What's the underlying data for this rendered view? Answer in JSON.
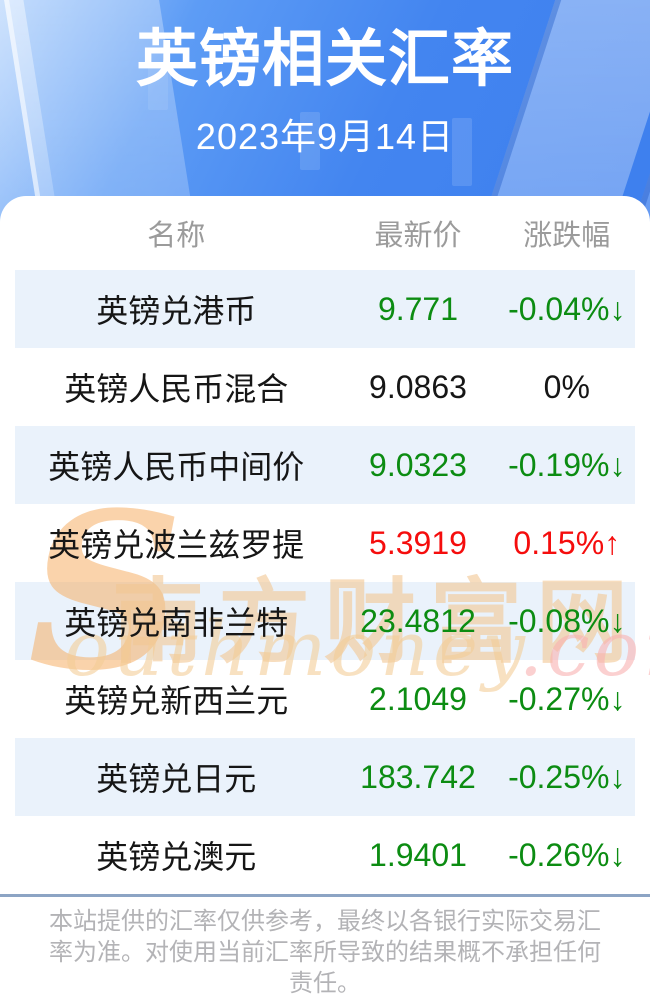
{
  "header": {
    "title": "英镑相关汇率",
    "date": "2023年9月14日"
  },
  "table": {
    "columns": [
      "名称",
      "最新价",
      "涨跌幅"
    ],
    "rows": [
      {
        "name": "英镑兑港币",
        "price": "9.771",
        "change": "-0.04%↓",
        "trend": "down"
      },
      {
        "name": "英镑人民币混合",
        "price": "9.0863",
        "change": "0%",
        "trend": "flat"
      },
      {
        "name": "英镑人民币中间价",
        "price": "9.0323",
        "change": "-0.19%↓",
        "trend": "down"
      },
      {
        "name": "英镑兑波兰兹罗提",
        "price": "5.3919",
        "change": "0.15%↑",
        "trend": "up"
      },
      {
        "name": "英镑兑南非兰特",
        "price": "23.4812",
        "change": "-0.08%↓",
        "trend": "down"
      },
      {
        "name": "英镑兑新西兰元",
        "price": "2.1049",
        "change": "-0.27%↓",
        "trend": "down"
      },
      {
        "name": "英镑兑日元",
        "price": "183.742",
        "change": "-0.25%↓",
        "trend": "down"
      },
      {
        "name": "英镑兑澳元",
        "price": "1.9401",
        "change": "-0.26%↓",
        "trend": "down"
      }
    ]
  },
  "watermark": {
    "initial": "S",
    "brand_cn": "南方财富网",
    "brand_en": "outhmoney",
    "domain": ".com"
  },
  "footer": {
    "disclaimer": "本站提供的汇率仅供参考，最终以各银行实际交易汇率为准。对使用当前汇率所导致的结果概不承担任何责任。"
  },
  "colors": {
    "up": "#f50d0d",
    "down": "#0c8c12",
    "flat": "#161616",
    "row_alt": "#eaf2fb",
    "divider": "#8ca4c4",
    "header_blue": "#4385f0"
  }
}
